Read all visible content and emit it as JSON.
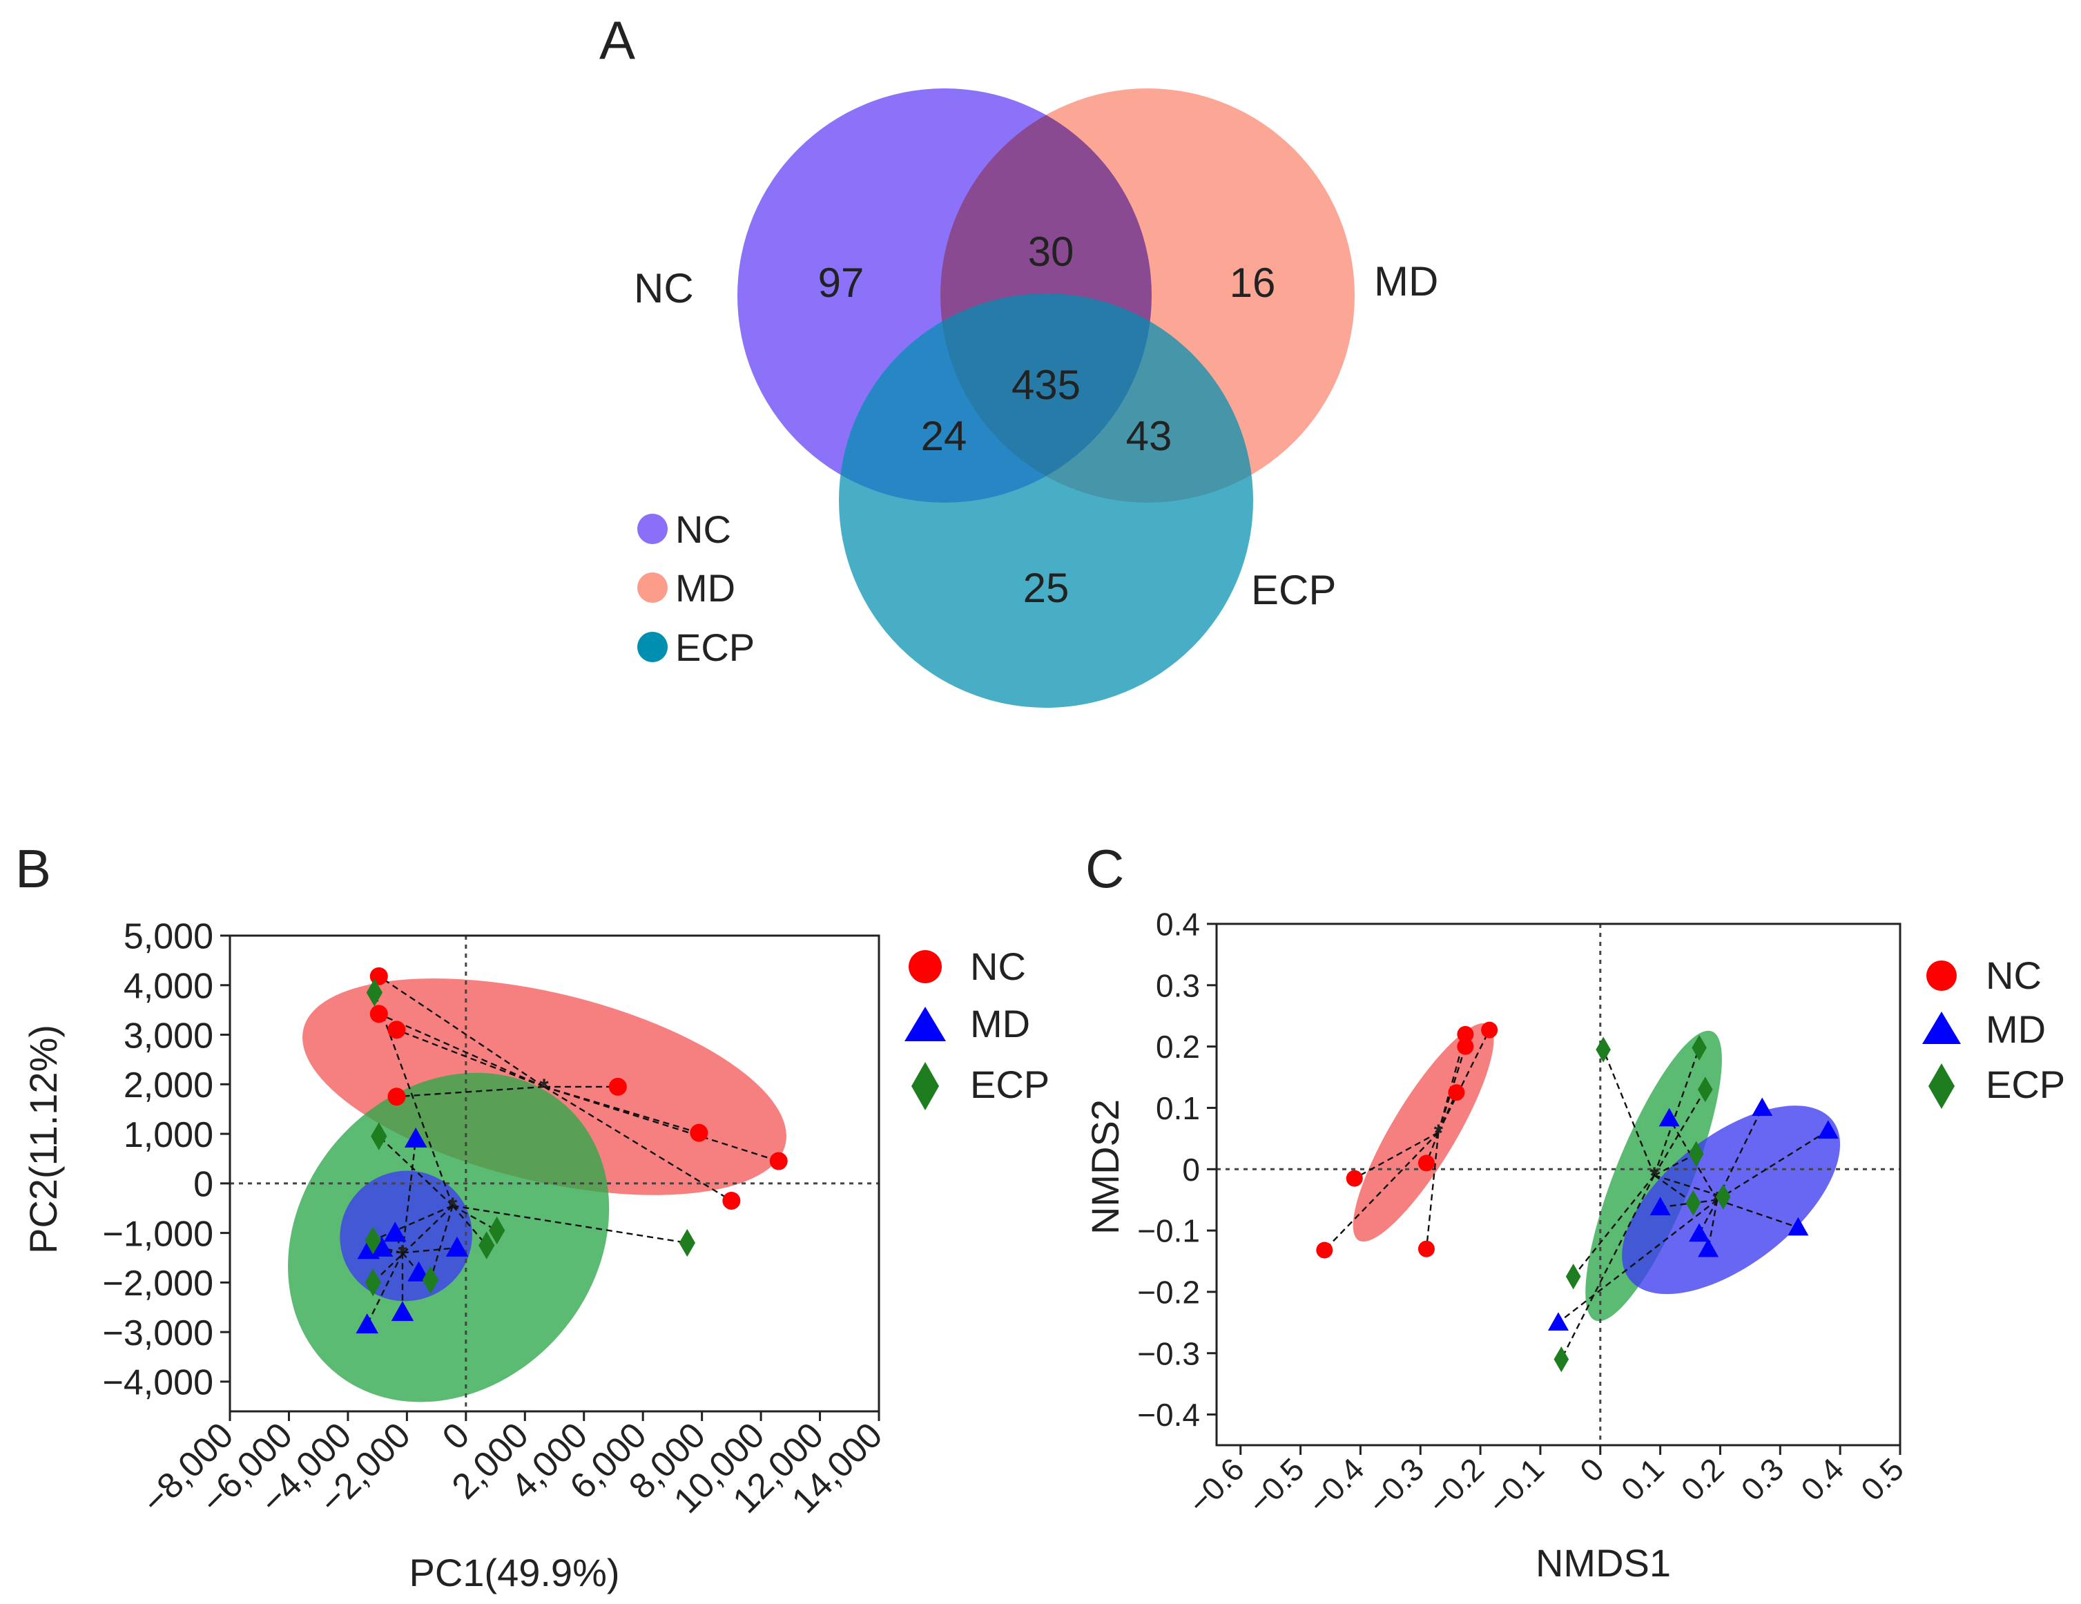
{
  "panels": {
    "a": "A",
    "b": "B",
    "c": "C"
  },
  "colors": {
    "nc_venn": "#8a6ff8",
    "md_venn": "#fc9c8b",
    "ecp_venn": "#008fb0",
    "nc": "#ff0000",
    "md": "#0000ff",
    "ecp": "#1e7d1e",
    "nc_ellipse": "#f45c5c",
    "md_ellipse": "#3c3cf0",
    "ecp_ellipse": "#2ea84a"
  },
  "chart_data": [
    {
      "type": "venn",
      "title": "A",
      "sets": [
        "NC",
        "MD",
        "ECP"
      ],
      "regions": {
        "NC_only": 97,
        "MD_only": 16,
        "ECP_only": 25,
        "NC_MD": 30,
        "NC_ECP": 24,
        "MD_ECP": 43,
        "NC_MD_ECP": 435
      },
      "legend": [
        "NC",
        "MD",
        "ECP"
      ]
    },
    {
      "type": "scatter",
      "title": "B",
      "xlabel": "PC1(49.9%)",
      "ylabel": "PC2(11.12%)",
      "xlim": [
        -8000,
        14000
      ],
      "ylim": [
        -4600,
        5000
      ],
      "xticks": [
        -8000,
        -6000,
        -4000,
        -2000,
        0,
        2000,
        4000,
        6000,
        8000,
        10000,
        12000,
        14000
      ],
      "xtick_labels": [
        "−8,000",
        "−6,000",
        "−4,000",
        "−2,000",
        "0",
        "2,000",
        "4,000",
        "6,000",
        "8,000",
        "10,000",
        "12,000",
        "14,000"
      ],
      "yticks": [
        -4000,
        -3000,
        -2000,
        -1000,
        0,
        1000,
        2000,
        3000,
        4000,
        5000
      ],
      "ytick_labels": [
        "−4,000",
        "−3,000",
        "−2,000",
        "−1,000",
        "0",
        "1,000",
        "2,000",
        "3,000",
        "4,000",
        "5,000"
      ],
      "legend": [
        "NC",
        "MD",
        "ECP"
      ],
      "series": [
        {
          "name": "NC",
          "marker": "circle",
          "centroid": [
            2650,
            1950
          ],
          "points": [
            [
              -2950,
              4180
            ],
            [
              -2950,
              3420
            ],
            [
              -2350,
              3100
            ],
            [
              -2350,
              1750
            ],
            [
              5150,
              1950
            ],
            [
              7900,
              1020
            ],
            [
              10600,
              450
            ],
            [
              9000,
              -350
            ]
          ],
          "ellipse": {
            "cx": 2660,
            "cy": 1950,
            "rx": 8400,
            "ry": 1900,
            "angle_deg": -13.5
          }
        },
        {
          "name": "MD",
          "marker": "triangle",
          "centroid": [
            -2150,
            -1400
          ],
          "points": [
            [
              -1700,
              900
            ],
            [
              -300,
              -1300
            ],
            [
              -2400,
              -1000
            ],
            [
              -2850,
              -1300
            ],
            [
              -3300,
              -1350
            ],
            [
              -2150,
              -2600
            ],
            [
              -3350,
              -2850
            ],
            [
              -1600,
              -1800
            ]
          ],
          "ellipse": {
            "cx": -2030,
            "cy": -1060,
            "rx": 2200,
            "ry": 1340,
            "angle_deg": -64
          }
        },
        {
          "name": "ECP",
          "marker": "diamond",
          "centroid": [
            -450,
            -450
          ],
          "points": [
            [
              -3100,
              3850
            ],
            [
              -2950,
              950
            ],
            [
              -3150,
              -1150
            ],
            [
              -3150,
              -2000
            ],
            [
              -1200,
              -1950
            ],
            [
              700,
              -1250
            ],
            [
              1050,
              -950
            ],
            [
              7500,
              -1200
            ]
          ],
          "ellipse": {
            "cx": -590,
            "cy": -1090,
            "rx": 5000,
            "ry": 3560,
            "angle_deg": -41
          }
        }
      ]
    },
    {
      "type": "scatter",
      "title": "C",
      "xlabel": "NMDS1",
      "ylabel": "NMDS2",
      "xlim": [
        -0.64,
        0.5
      ],
      "ylim": [
        -0.45,
        0.4
      ],
      "xticks": [
        -0.6,
        -0.5,
        -0.4,
        -0.3,
        -0.2,
        -0.1,
        0,
        0.1,
        0.2,
        0.3,
        0.4,
        0.5
      ],
      "xtick_labels": [
        "−0.6",
        "−0.5",
        "−0.4",
        "−0.3",
        "−0.2",
        "−0.1",
        "0",
        "0.1",
        "0.2",
        "0.3",
        "0.4",
        "0.5"
      ],
      "yticks": [
        -0.4,
        -0.3,
        -0.2,
        -0.1,
        0,
        0.1,
        0.2,
        0.3,
        0.4
      ],
      "ytick_labels": [
        "−0.4",
        "−0.3",
        "−0.2",
        "−0.1",
        "0",
        "0.1",
        "0.2",
        "0.3",
        "0.4"
      ],
      "legend": [
        "NC",
        "MD",
        "ECP"
      ],
      "series": [
        {
          "name": "NC",
          "marker": "circle",
          "centroid": [
            -0.27,
            0.06
          ],
          "points": [
            [
              -0.225,
              0.22
            ],
            [
              -0.185,
              0.227
            ],
            [
              -0.225,
              0.2
            ],
            [
              -0.24,
              0.125
            ],
            [
              -0.29,
              0.01
            ],
            [
              -0.41,
              -0.015
            ],
            [
              -0.46,
              -0.132
            ],
            [
              -0.29,
              -0.13
            ]
          ],
          "ellipse": {
            "cx": -0.295,
            "cy": 0.06,
            "rx": 0.21,
            "ry": 0.052,
            "angle_deg": 59
          }
        },
        {
          "name": "MD",
          "marker": "triangle",
          "centroid": [
            0.195,
            -0.05
          ],
          "points": [
            [
              0.38,
              0.063
            ],
            [
              0.27,
              0.1
            ],
            [
              0.115,
              0.083
            ],
            [
              0.1,
              -0.062
            ],
            [
              0.165,
              -0.105
            ],
            [
              0.18,
              -0.13
            ],
            [
              0.33,
              -0.095
            ],
            [
              -0.07,
              -0.25
            ]
          ],
          "ellipse": {
            "cx": 0.218,
            "cy": -0.05,
            "rx": 0.215,
            "ry": 0.105,
            "angle_deg": 38
          }
        },
        {
          "name": "ECP",
          "marker": "diamond",
          "centroid": [
            0.09,
            -0.01
          ],
          "points": [
            [
              0.005,
              0.195
            ],
            [
              0.165,
              0.198
            ],
            [
              0.175,
              0.13
            ],
            [
              0.16,
              0.025
            ],
            [
              0.155,
              -0.055
            ],
            [
              0.205,
              -0.045
            ],
            [
              -0.045,
              -0.175
            ],
            [
              -0.065,
              -0.31
            ]
          ],
          "ellipse": {
            "cx": 0.089,
            "cy": -0.011,
            "rx": 0.26,
            "ry": 0.062,
            "angle_deg": 68
          }
        }
      ]
    }
  ]
}
